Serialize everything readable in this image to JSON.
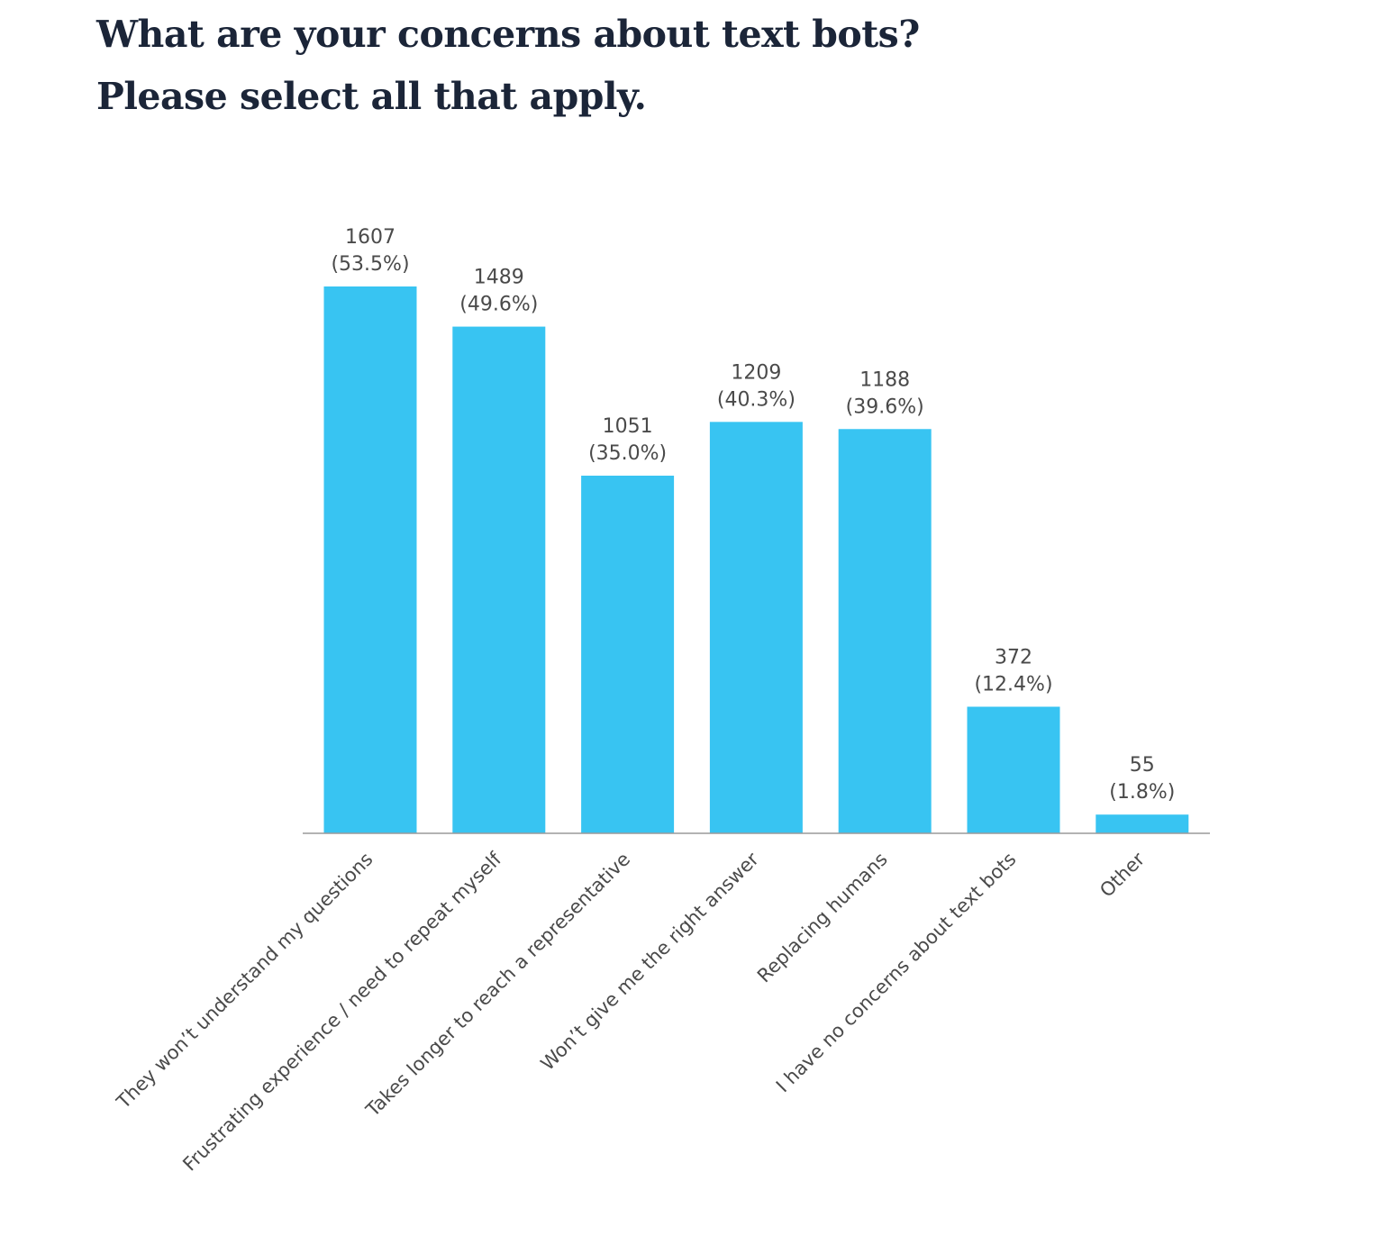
{
  "title": {
    "line1": "What are your concerns about text bots?",
    "line2": "Please select all that apply."
  },
  "colors": {
    "bar": "#38c4f2",
    "axis": "#9a9a9a",
    "text": "#4a4a4a",
    "title": "#1b2538"
  },
  "chart_data": {
    "type": "bar",
    "title": "What are your concerns about text bots? Please select all that apply.",
    "categories": [
      "They won’t understand my questions",
      "Frustrating experience / need to repeat myself",
      "Takes longer to reach a representative",
      "Won’t give me the right answer",
      "Replacing humans",
      "I have no concerns about text bots",
      "Other"
    ],
    "values": [
      1607,
      1489,
      1051,
      1209,
      1188,
      372,
      55
    ],
    "percent_labels": [
      "(53.5%)",
      "(49.6%)",
      "(35.0%)",
      "(40.3%)",
      "(39.6%)",
      "(12.4%)",
      "(1.8%)"
    ],
    "ylim": [
      0,
      1607
    ],
    "grid": false,
    "legend": "none"
  }
}
